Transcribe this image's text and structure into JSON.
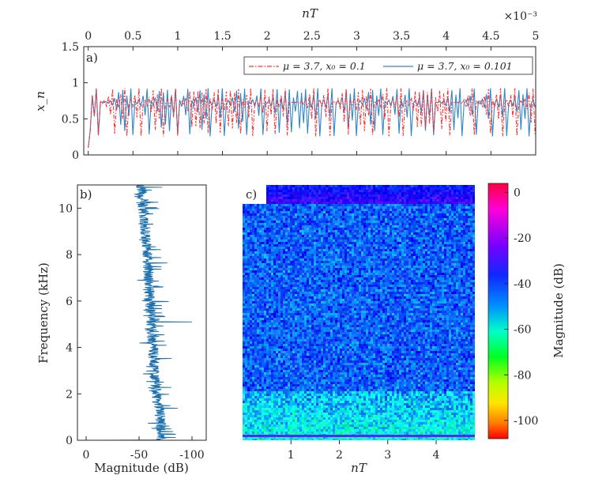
{
  "colors": {
    "series_a": "#ff3030",
    "series_b": "#2f86c8",
    "psd": "#1b6fae",
    "axis": "#262626",
    "spectrogram_base": "#3268d8"
  },
  "chart_data": [
    {
      "type": "line",
      "panel_label": "a)",
      "xlabel": "nT",
      "xlabel_position": "top",
      "x_scale_note": "×10⁻³",
      "ylabel": "x_n",
      "xlim": [
        -5e-05,
        0.005
      ],
      "ylim": [
        0,
        1.5
      ],
      "xtick_labels": [
        "0",
        "0.5",
        "1",
        "1.5",
        "2",
        "2.5",
        "3",
        "3.5",
        "4",
        "4.5",
        "5"
      ],
      "ytick_labels": [
        "0",
        "0.5",
        "1",
        "1.5"
      ],
      "legend_position": "top-right",
      "series": [
        {
          "name": "μ = 3.7, x₀ = 0.1",
          "style": "dash-dot",
          "color": "#ff3030",
          "map": {
            "mu": 3.7,
            "x0": 0.1
          },
          "n_points": 221,
          "sample_period": 2.27e-05
        },
        {
          "name": "μ = 3.7, x₀ = 0.101",
          "style": "solid",
          "color": "#2f86c8",
          "map": {
            "mu": 3.7,
            "x0": 0.101
          },
          "n_points": 221,
          "sample_period": 2.27e-05
        }
      ]
    },
    {
      "type": "line",
      "panel_label": "b)",
      "xlabel": "Magnitude (dB)",
      "ylabel": "Frequency (kHz)",
      "xlim": [
        0,
        -105
      ],
      "ylim": [
        0,
        11
      ],
      "xtick_labels": [
        "0",
        "-50",
        "-100"
      ],
      "ytick_labels": [
        "0",
        "2",
        "4",
        "6",
        "8",
        "10"
      ],
      "series": [
        {
          "name": "",
          "color": "#1b6fae",
          "baseline_db": [
            [
              0,
              -71
            ],
            [
              1,
              -70
            ],
            [
              2,
              -66
            ],
            [
              4,
              -63
            ],
            [
              6,
              -60
            ],
            [
              8,
              -58
            ],
            [
              10,
              -54
            ],
            [
              11,
              -52
            ]
          ],
          "spike": {
            "freq": 5.1,
            "db": -100
          }
        }
      ]
    },
    {
      "type": "heatmap",
      "panel_label": "c)",
      "xlabel": "nT",
      "xlim": [
        0,
        4.8
      ],
      "ylim": [
        0,
        11
      ],
      "xtick_labels": [
        "1",
        "2",
        "3",
        "4"
      ],
      "colorbar": {
        "label": "Magnitude (dB)",
        "range": [
          -108,
          4
        ],
        "tick_labels": [
          "0",
          "-20",
          "-40",
          "-60",
          "-80",
          "-100"
        ],
        "tick_values": [
          0,
          -20,
          -40,
          -60,
          -80,
          -100
        ],
        "colormap": "hsv"
      }
    }
  ]
}
